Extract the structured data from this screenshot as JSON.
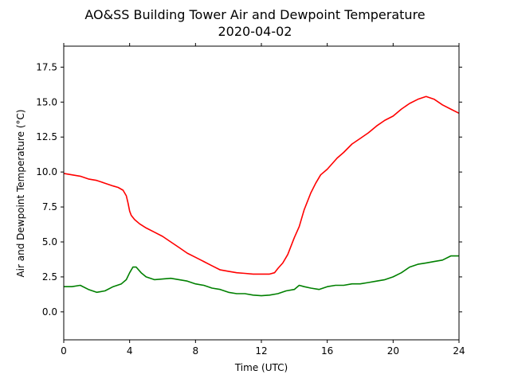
{
  "chart_data": {
    "type": "line",
    "title": "AO&SS Building Tower Air and Dewpoint Temperature",
    "subtitle": "2020-04-02",
    "xlabel": "Time (UTC)",
    "ylabel": "Air and Dewpoint Temperature (°C)",
    "xlim": [
      0,
      24
    ],
    "ylim": [
      -2,
      19
    ],
    "xticks": [
      0,
      4,
      8,
      12,
      16,
      20,
      24
    ],
    "xtick_labels": [
      "0",
      "4",
      "8",
      "12",
      "16",
      "20",
      "24"
    ],
    "yticks": [
      0,
      2.5,
      5,
      7.5,
      10,
      12.5,
      15,
      17.5
    ],
    "ytick_labels": [
      "0.0",
      "2.5",
      "5.0",
      "7.5",
      "10.0",
      "12.5",
      "15.0",
      "17.5"
    ],
    "grid": false,
    "series": [
      {
        "color": "#ff0000",
        "x": [
          0,
          0.5,
          1,
          1.5,
          2,
          2.5,
          3,
          3.3,
          3.6,
          3.8,
          3.9,
          4.0,
          4.1,
          4.3,
          4.6,
          5,
          5.5,
          6,
          6.5,
          7,
          7.5,
          8,
          8.5,
          9,
          9.5,
          10,
          10.5,
          11,
          11.5,
          12,
          12.5,
          12.8,
          13,
          13.3,
          13.6,
          14,
          14.3,
          14.6,
          15,
          15.3,
          15.6,
          16,
          16.3,
          16.6,
          17,
          17.5,
          18,
          18.5,
          19,
          19.5,
          20,
          20.5,
          21,
          21.5,
          22,
          22.5,
          23,
          23.5,
          24
        ],
        "y": [
          9.9,
          9.8,
          9.7,
          9.5,
          9.4,
          9.2,
          9.0,
          8.9,
          8.7,
          8.3,
          7.8,
          7.2,
          6.9,
          6.6,
          6.3,
          6.0,
          5.7,
          5.4,
          5.0,
          4.6,
          4.2,
          3.9,
          3.6,
          3.3,
          3.0,
          2.9,
          2.8,
          2.75,
          2.7,
          2.7,
          2.7,
          2.8,
          3.1,
          3.5,
          4.1,
          5.3,
          6.1,
          7.3,
          8.5,
          9.2,
          9.8,
          10.2,
          10.6,
          11.0,
          11.4,
          12.0,
          12.4,
          12.8,
          13.3,
          13.7,
          14.0,
          14.5,
          14.9,
          15.2,
          15.4,
          15.2,
          14.8,
          14.5,
          14.2
        ]
      },
      {
        "color": "#008000",
        "x": [
          0,
          0.5,
          1,
          1.5,
          2,
          2.5,
          3,
          3.5,
          3.8,
          4.0,
          4.2,
          4.4,
          4.7,
          5,
          5.5,
          6,
          6.5,
          7,
          7.5,
          8,
          8.5,
          9,
          9.5,
          10,
          10.5,
          11,
          11.5,
          12,
          12.5,
          13,
          13.5,
          14,
          14.3,
          14.6,
          15,
          15.5,
          16,
          16.5,
          17,
          17.5,
          18,
          18.5,
          19,
          19.5,
          20,
          20.5,
          21,
          21.5,
          22,
          22.5,
          23,
          23.5,
          24
        ],
        "y": [
          1.8,
          1.8,
          1.9,
          1.6,
          1.4,
          1.5,
          1.8,
          2.0,
          2.3,
          2.8,
          3.2,
          3.2,
          2.8,
          2.5,
          2.3,
          2.35,
          2.4,
          2.3,
          2.2,
          2.0,
          1.9,
          1.7,
          1.6,
          1.4,
          1.3,
          1.3,
          1.2,
          1.15,
          1.2,
          1.3,
          1.5,
          1.6,
          1.9,
          1.8,
          1.7,
          1.6,
          1.8,
          1.9,
          1.9,
          2.0,
          2.0,
          2.1,
          2.2,
          2.3,
          2.5,
          2.8,
          3.2,
          3.4,
          3.5,
          3.6,
          3.7,
          4.0,
          4.0
        ]
      }
    ]
  }
}
